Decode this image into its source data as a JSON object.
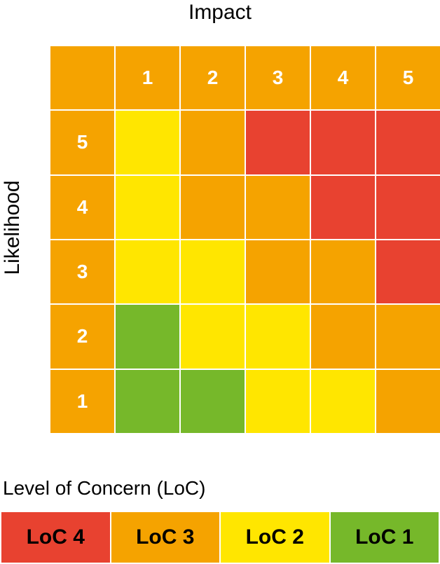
{
  "titles": {
    "x_axis": "Impact",
    "y_axis": "Likelihood"
  },
  "colors": {
    "loc4": "#e84230",
    "loc3": "#f5a300",
    "loc2": "#ffe600",
    "loc1": "#76b82a",
    "header": "#f5a300"
  },
  "impact_values": [
    "1",
    "2",
    "3",
    "4",
    "5"
  ],
  "likelihood_rows": [
    {
      "label": "5",
      "cells": [
        2,
        3,
        4,
        4,
        4
      ]
    },
    {
      "label": "4",
      "cells": [
        2,
        3,
        3,
        4,
        4
      ]
    },
    {
      "label": "3",
      "cells": [
        2,
        2,
        3,
        3,
        4
      ]
    },
    {
      "label": "2",
      "cells": [
        1,
        2,
        2,
        3,
        3
      ]
    },
    {
      "label": "1",
      "cells": [
        1,
        1,
        2,
        2,
        3
      ]
    }
  ],
  "legend": {
    "title": "Level of Concern (LoC)",
    "items": [
      {
        "label": "LoC 4",
        "level": 4
      },
      {
        "label": "LoC 3",
        "level": 3
      },
      {
        "label": "LoC 2",
        "level": 2
      },
      {
        "label": "LoC 1",
        "level": 1
      }
    ]
  }
}
